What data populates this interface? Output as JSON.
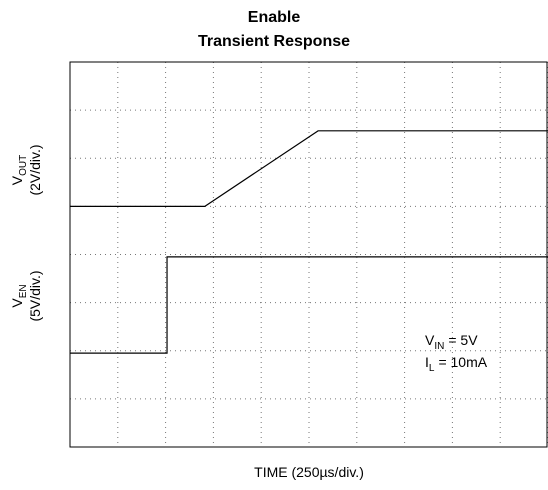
{
  "chart_data": {
    "type": "line",
    "title": "Enable",
    "subtitle": "Transient Response",
    "x_label": "TIME (250µs/div.)",
    "y_labels": [
      {
        "symbol": "V",
        "subscript": "OUT",
        "scale": "(2V/div.)"
      },
      {
        "symbol": "V",
        "subscript": "EN",
        "scale": "(5V/div.)"
      }
    ],
    "annotations": [
      {
        "symbol": "V",
        "subscript": "IN",
        "text": "= 5V"
      },
      {
        "symbol": "I",
        "subscript": "L",
        "text": "= 10mA"
      }
    ],
    "xlim": [
      0,
      10
    ],
    "ylim": [
      0,
      8
    ],
    "xticks": [
      0,
      1,
      2,
      3,
      4,
      5,
      6,
      7,
      8,
      9,
      10
    ],
    "yticks": [
      0,
      1,
      2,
      3,
      4,
      5,
      6,
      7,
      8
    ],
    "grid": true,
    "series": [
      {
        "color": "#000000",
        "x": [
          0,
          2.82,
          5.19,
          10
        ],
        "values": [
          5,
          5,
          6.57,
          6.57
        ]
      },
      {
        "color": "#000000",
        "x": [
          0,
          2.03,
          2.03,
          10
        ],
        "values": [
          1.95,
          1.95,
          3.95,
          3.95
        ]
      }
    ]
  }
}
